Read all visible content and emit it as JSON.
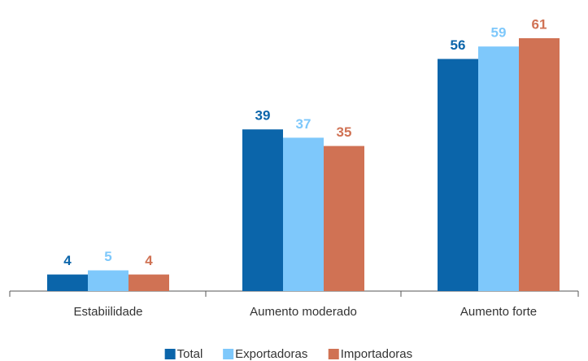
{
  "chart_data": {
    "type": "bar",
    "categories": [
      "Estabiilidade",
      "Aumento moderado",
      "Aumento forte"
    ],
    "series": [
      {
        "name": "Total",
        "color": "#0b65aa",
        "values": [
          4,
          39,
          56
        ]
      },
      {
        "name": "Exportadoras",
        "color": "#7ec8fb",
        "values": [
          5,
          37,
          59
        ]
      },
      {
        "name": "Importadoras",
        "color": "#d07254",
        "values": [
          4,
          35,
          61
        ]
      }
    ],
    "legend": "bottom"
  }
}
